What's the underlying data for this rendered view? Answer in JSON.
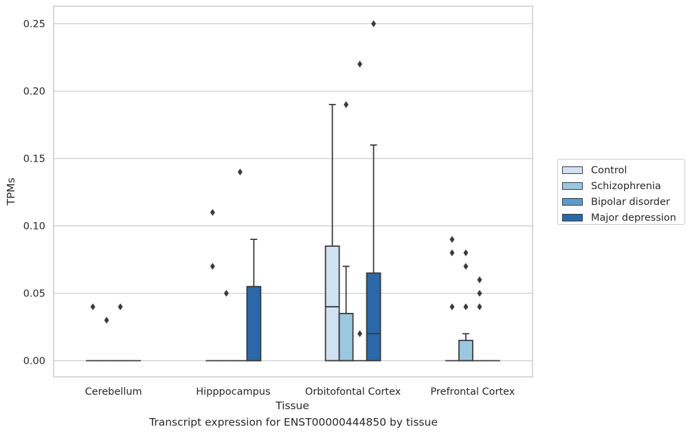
{
  "chart_data": {
    "type": "box",
    "xlabel": "Tissue",
    "ylabel": "TPMs",
    "ylim": [
      -0.012,
      0.263
    ],
    "yticks": [
      0.0,
      0.05,
      0.1,
      0.15,
      0.2,
      0.25
    ],
    "ytick_labels": [
      "0.00",
      "0.05",
      "0.10",
      "0.15",
      "0.20",
      "0.25"
    ],
    "grid": true,
    "legend_position": "right",
    "categories": [
      "Cerebellum",
      "Hipppocampus",
      "Orbitofontal Cortex",
      "Prefrontal Cortex"
    ],
    "series": [
      {
        "name": "Control",
        "color": "#d0e1f2",
        "boxes": [
          {
            "q1": 0,
            "median": 0,
            "q3": 0,
            "whisker_low": 0,
            "whisker_high": 0,
            "outliers": [
              0.04
            ]
          },
          {
            "q1": 0,
            "median": 0,
            "q3": 0,
            "whisker_low": 0,
            "whisker_high": 0,
            "outliers": [
              0.11,
              0.07
            ]
          },
          {
            "q1": 0,
            "median": 0.04,
            "q3": 0.085,
            "whisker_low": 0,
            "whisker_high": 0.19,
            "outliers": []
          },
          {
            "q1": 0,
            "median": 0,
            "q3": 0,
            "whisker_low": 0,
            "whisker_high": 0,
            "outliers": [
              0.09,
              0.08,
              0.04
            ]
          }
        ]
      },
      {
        "name": "Schizophrenia",
        "color": "#9ac8e0",
        "boxes": [
          {
            "q1": 0,
            "median": 0,
            "q3": 0,
            "whisker_low": 0,
            "whisker_high": 0,
            "outliers": [
              0.03
            ]
          },
          {
            "q1": 0,
            "median": 0,
            "q3": 0,
            "whisker_low": 0,
            "whisker_high": 0,
            "outliers": [
              0.05
            ]
          },
          {
            "q1": 0,
            "median": 0,
            "q3": 0.035,
            "whisker_low": 0,
            "whisker_high": 0.07,
            "outliers": [
              0.19
            ]
          },
          {
            "q1": 0,
            "median": 0,
            "q3": 0.015,
            "whisker_low": 0,
            "whisker_high": 0.02,
            "outliers": [
              0.08,
              0.07,
              0.04
            ]
          }
        ]
      },
      {
        "name": "Bipolar disorder",
        "color": "#5b9ccb",
        "boxes": [
          {
            "q1": 0,
            "median": 0,
            "q3": 0,
            "whisker_low": 0,
            "whisker_high": 0,
            "outliers": [
              0.04
            ]
          },
          {
            "q1": 0,
            "median": 0,
            "q3": 0,
            "whisker_low": 0,
            "whisker_high": 0,
            "outliers": [
              0.14
            ]
          },
          {
            "q1": 0,
            "median": 0,
            "q3": 0,
            "whisker_low": 0,
            "whisker_high": 0,
            "outliers": [
              0.22,
              0.02
            ]
          },
          {
            "q1": 0,
            "median": 0,
            "q3": 0,
            "whisker_low": 0,
            "whisker_high": 0,
            "outliers": [
              0.06,
              0.05,
              0.04
            ]
          }
        ]
      },
      {
        "name": "Major depression",
        "color": "#2b68a8",
        "boxes": [
          {
            "q1": 0,
            "median": 0,
            "q3": 0,
            "whisker_low": 0,
            "whisker_high": 0,
            "outliers": []
          },
          {
            "q1": 0,
            "median": 0,
            "q3": 0.055,
            "whisker_low": 0,
            "whisker_high": 0.09,
            "outliers": []
          },
          {
            "q1": 0,
            "median": 0.02,
            "q3": 0.065,
            "whisker_low": 0,
            "whisker_high": 0.16,
            "outliers": [
              0.25
            ]
          },
          {
            "q1": 0,
            "median": 0,
            "q3": 0,
            "whisker_low": 0,
            "whisker_high": 0,
            "outliers": []
          }
        ]
      }
    ]
  },
  "caption": "Transcript expression for ENST00000444850 by tissue"
}
